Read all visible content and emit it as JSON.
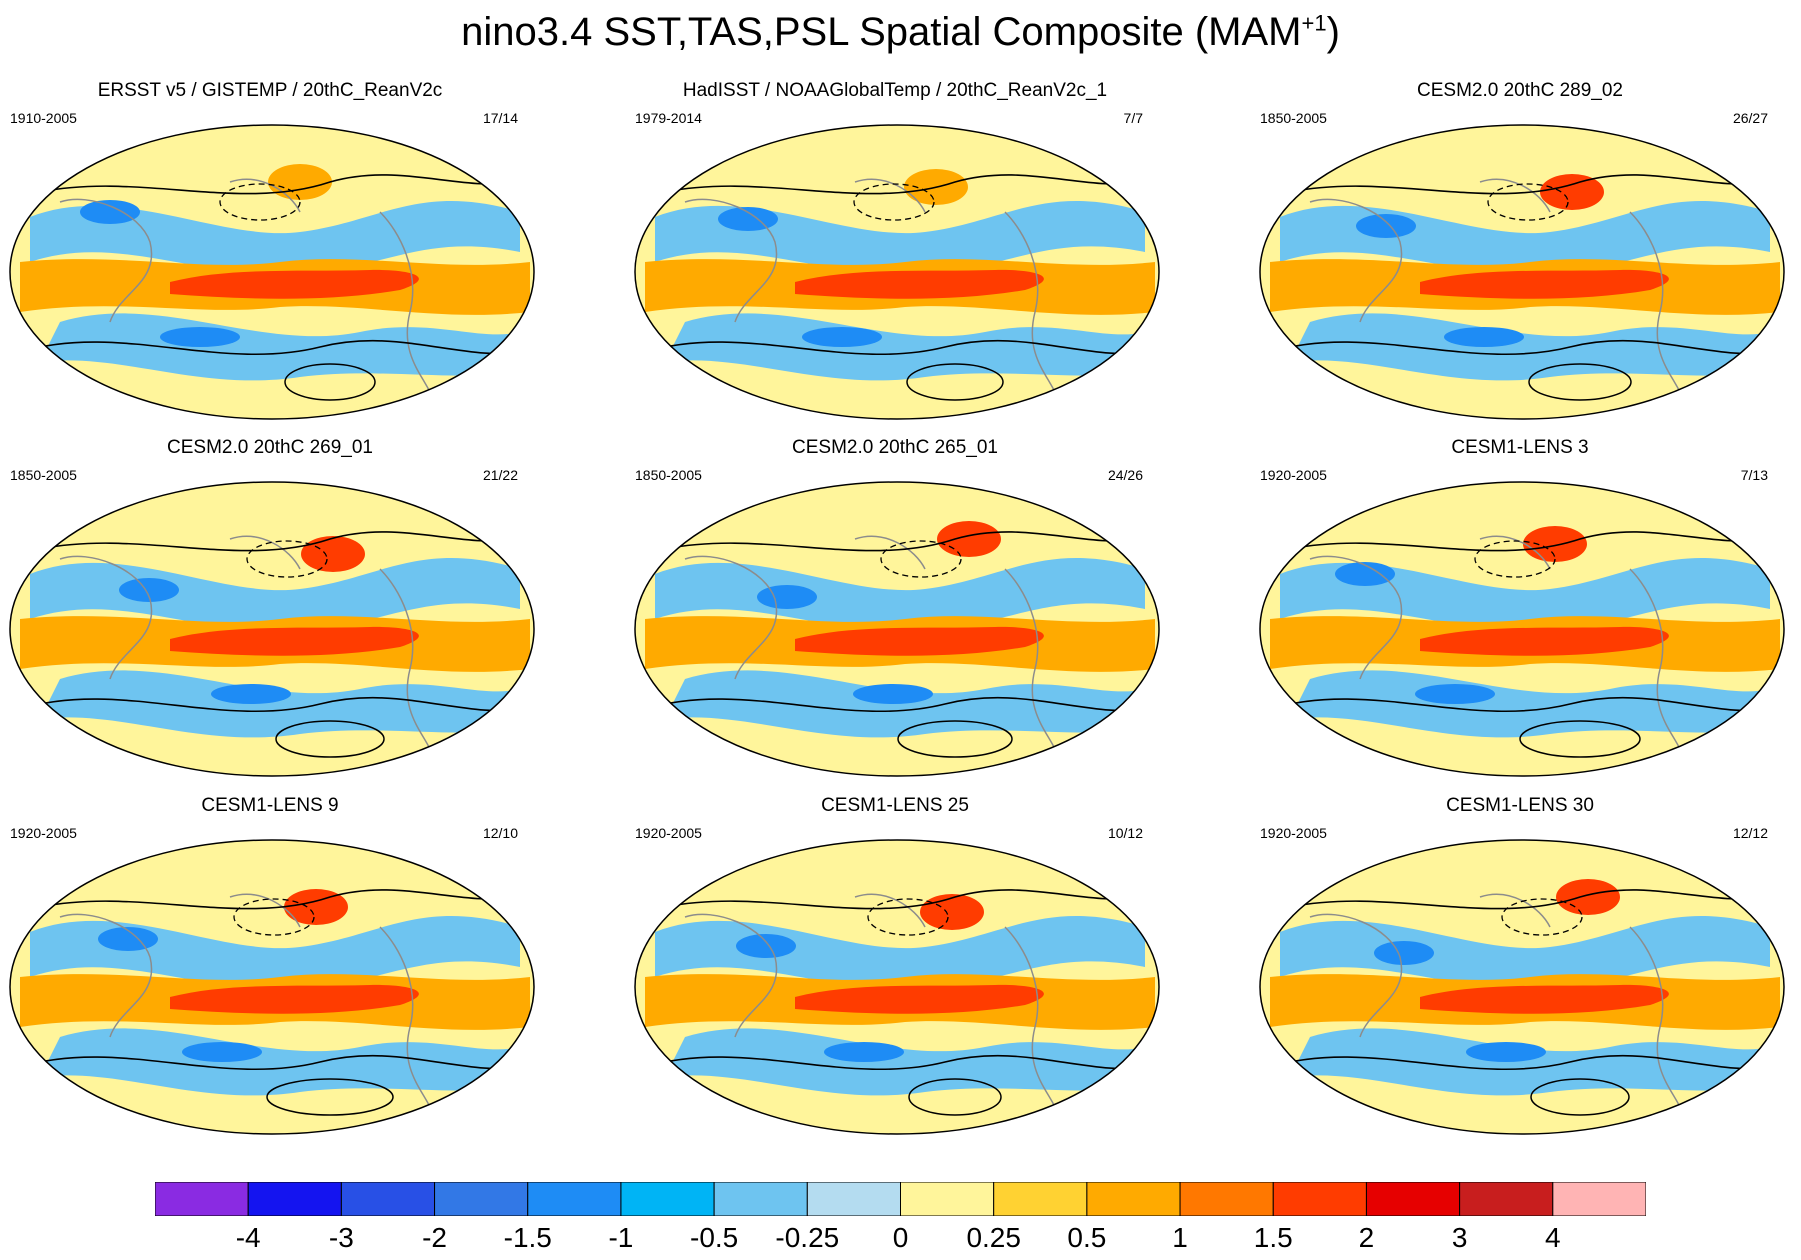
{
  "title": {
    "main": "nino3.4 SST,TAS,PSL Spatial Composite (MAM",
    "superscript": "+1",
    "suffix": ")"
  },
  "panels": [
    {
      "title": "ERSST v5 / GISTEMP / 20thC_ReanV2c",
      "period": "1910-2005",
      "count": "17/14"
    },
    {
      "title": "HadISST / NOAAGlobalTemp / 20thC_ReanV2c_1",
      "period": "1979-2014",
      "count": "7/7"
    },
    {
      "title": "CESM2.0 20thC 289_02",
      "period": "1850-2005",
      "count": "26/27"
    },
    {
      "title": "CESM2.0 20thC 269_01",
      "period": "1850-2005",
      "count": "21/22"
    },
    {
      "title": "CESM2.0 20thC 265_01",
      "period": "1850-2005",
      "count": "24/26"
    },
    {
      "title": "CESM1-LENS 3",
      "period": "1920-2005",
      "count": "7/13"
    },
    {
      "title": "CESM1-LENS 9",
      "period": "1920-2005",
      "count": "12/10"
    },
    {
      "title": "CESM1-LENS 25",
      "period": "1920-2005",
      "count": "10/12"
    },
    {
      "title": "CESM1-LENS 30",
      "period": "1920-2005",
      "count": "12/12"
    }
  ],
  "colorbar": {
    "labels": [
      "-4",
      "-3",
      "-2",
      "-1.5",
      "-1",
      "-0.5",
      "-0.25",
      "0",
      "0.25",
      "0.5",
      "1",
      "1.5",
      "2",
      "3",
      "4"
    ],
    "colors": [
      "#8a2be2",
      "#1414f0",
      "#2850e6",
      "#3278e6",
      "#1e8cf5",
      "#00b4f5",
      "#6ec4f0",
      "#b4dcf0",
      "#fff59b",
      "#ffd232",
      "#ffaa00",
      "#ff7800",
      "#ff3c00",
      "#e60000",
      "#c81e1e",
      "#ffb4b4"
    ]
  },
  "palette": {
    "background": "#fff59b",
    "warm": "#ffaa00",
    "hot": "#ff3c00",
    "cool": "#6ec4f0",
    "cold": "#1e8cf5",
    "coast": "#8c8c8c",
    "contour": "#000000"
  }
}
